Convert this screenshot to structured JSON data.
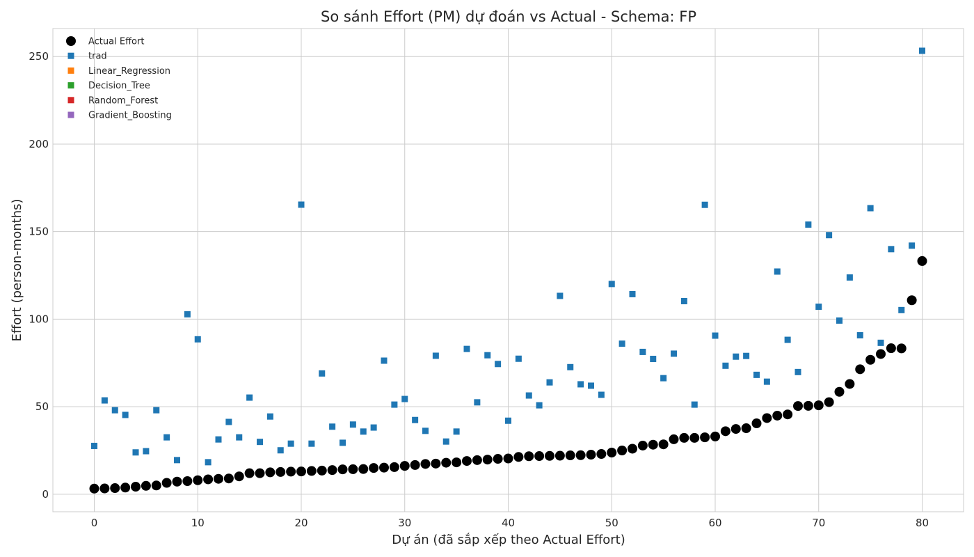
{
  "chart_data": {
    "type": "scatter",
    "title": "So sánh Effort (PM) dự đoán vs Actual - Schema: FP",
    "xlabel": "Dự án (đã sắp xếp theo Actual Effort)",
    "ylabel": "Effort (person-months)",
    "xlim": [
      -4,
      84
    ],
    "ylim": [
      -10,
      266
    ],
    "xticks": [
      0,
      10,
      20,
      30,
      40,
      50,
      60,
      70,
      80
    ],
    "yticks": [
      0,
      50,
      100,
      150,
      200,
      250
    ],
    "grid": true,
    "legend_position": "top-left",
    "series": [
      {
        "name": "Actual Effort",
        "marker": "circle",
        "color": "#000000",
        "y": [
          3.2,
          3.3,
          3.5,
          3.8,
          4.3,
          4.8,
          5.0,
          6.5,
          7.2,
          7.5,
          8.0,
          8.5,
          8.8,
          9.0,
          10.2,
          12.0,
          12.0,
          12.5,
          12.7,
          12.9,
          13.0,
          13.3,
          13.5,
          13.8,
          14.2,
          14.3,
          14.4,
          15.0,
          15.2,
          15.5,
          16.2,
          16.7,
          17.3,
          17.5,
          18.0,
          18.2,
          19.0,
          19.5,
          19.8,
          20.2,
          20.4,
          21.3,
          21.7,
          21.8,
          21.9,
          22.0,
          22.2,
          22.3,
          22.6,
          23.0,
          23.8,
          25.0,
          26.0,
          27.8,
          28.3,
          28.5,
          31.4,
          32.2,
          32.2,
          32.5,
          33.0,
          36.0,
          37.3,
          37.7,
          40.5,
          43.5,
          44.9,
          45.6,
          50.4,
          50.5,
          50.8,
          52.6,
          58.5,
          63.0,
          71.4,
          76.8,
          80.1,
          83.4,
          83.3,
          110.8,
          133.2
        ]
      },
      {
        "name": "trad",
        "marker": "square",
        "color": "#1f77b4",
        "y": [
          27.6,
          53.6,
          48.0,
          45.3,
          23.9,
          24.6,
          48.0,
          32.5,
          19.5,
          102.8,
          88.5,
          18.3,
          31.3,
          41.3,
          32.5,
          55.2,
          29.9,
          44.4,
          25.1,
          28.9,
          165.4,
          28.9,
          69.0,
          38.6,
          29.4,
          39.8,
          35.8,
          38.1,
          76.3,
          51.2,
          54.4,
          42.4,
          36.2,
          79.1,
          30.1,
          35.8,
          83.0,
          52.5,
          79.4,
          74.4,
          42.0,
          77.4,
          56.4,
          50.8,
          63.9,
          113.3,
          72.6,
          62.8,
          62.0,
          56.8,
          120.1,
          86.0,
          114.3,
          81.3,
          77.3,
          66.3,
          80.3,
          110.3,
          51.2,
          165.3,
          90.6,
          73.4,
          78.6,
          79.0,
          68.2,
          64.3,
          127.2,
          88.2,
          69.8,
          154.0,
          107.1,
          148.0,
          99.2,
          123.8,
          90.8,
          163.4,
          86.5,
          140.0,
          105.2,
          142.0,
          253.3
        ]
      },
      {
        "name": "Linear_Regression",
        "marker": "square",
        "color": "#ff7f0e",
        "y": []
      },
      {
        "name": "Decision_Tree",
        "marker": "square",
        "color": "#2ca02c",
        "y": []
      },
      {
        "name": "Random_Forest",
        "marker": "square",
        "color": "#d62728",
        "y": []
      },
      {
        "name": "Gradient_Boosting",
        "marker": "square",
        "color": "#9467bd",
        "y": []
      }
    ]
  }
}
